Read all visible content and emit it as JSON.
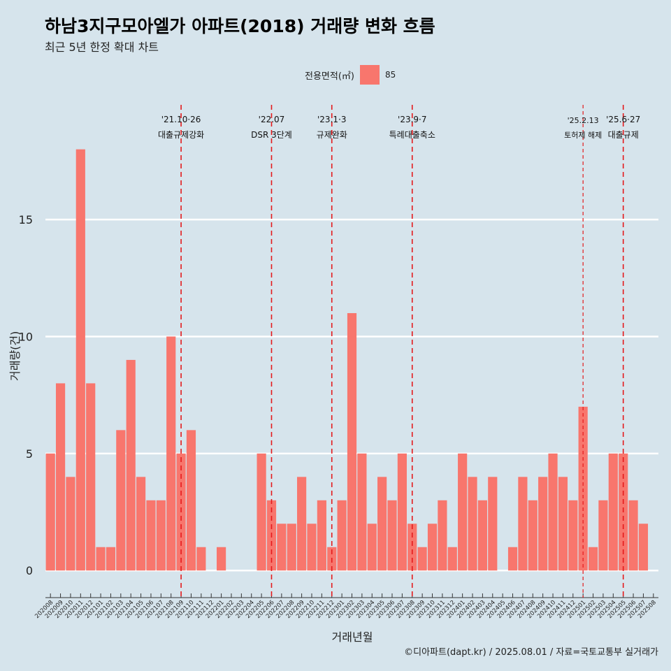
{
  "title": "하남3지구모아엘가 아파트(2018) 거래량 변화 흐름",
  "subtitle": "최근 5년 한정 확대 차트",
  "legend": {
    "title": "전용면적(㎡)",
    "value": "85",
    "color": "#f8766d"
  },
  "caption": "©디아파트(dapt.kr) / 2025.08.01 / 자료=국토교통부 실거래가",
  "chart_data": {
    "type": "bar",
    "xlabel": "거래년월",
    "ylabel": "거래량(건)",
    "ylim": [
      -0.8,
      20.2
    ],
    "yticks": [
      0,
      5,
      10,
      15
    ],
    "bar_color": "#f8766d",
    "grid": "horizontal",
    "legend_position": "top",
    "categories": [
      "202008",
      "202009",
      "202010",
      "202011",
      "202012",
      "202101",
      "202102",
      "202103",
      "202104",
      "202105",
      "202106",
      "202107",
      "202108",
      "202109",
      "202110",
      "202111",
      "202112",
      "202201",
      "202202",
      "202203",
      "202204",
      "202205",
      "202206",
      "202207",
      "202208",
      "202209",
      "202210",
      "202211",
      "202212",
      "202301",
      "202302",
      "202303",
      "202304",
      "202305",
      "202306",
      "202307",
      "202308",
      "202309",
      "202310",
      "202311",
      "202312",
      "202401",
      "202402",
      "202403",
      "202404",
      "202405",
      "202406",
      "202407",
      "202408",
      "202409",
      "202410",
      "202411",
      "202412",
      "202501",
      "202502",
      "202503",
      "202504",
      "202505",
      "202506",
      "202507",
      "202508"
    ],
    "series": [
      {
        "name": "85",
        "values": [
          5,
          8,
          4,
          18,
          8,
          1,
          1,
          6,
          9,
          4,
          3,
          3,
          10,
          5,
          6,
          1,
          0,
          1,
          0,
          0,
          0,
          5,
          3,
          2,
          2,
          4,
          2,
          3,
          1,
          3,
          11,
          5,
          2,
          4,
          3,
          5,
          2,
          1,
          2,
          3,
          1,
          5,
          4,
          3,
          4,
          0,
          1,
          4,
          3,
          4,
          5,
          4,
          3,
          7,
          1,
          3,
          5,
          5,
          3,
          2,
          0
        ]
      }
    ],
    "events": [
      {
        "date": "'21.10·26",
        "label": "대출규제강화",
        "position": 13.5,
        "small": false
      },
      {
        "date": "'22.07",
        "label": "DSR 3단계",
        "position": 22.5,
        "small": false
      },
      {
        "date": "'23.1·3",
        "label": "규제완화",
        "position": 28.5,
        "small": false
      },
      {
        "date": "'23.9·7",
        "label": "특례대출축소",
        "position": 36.5,
        "small": false
      },
      {
        "date": "'25.2.13",
        "label": "토허제 해제",
        "position": 53.5,
        "small": true
      },
      {
        "date": "'25.6·27",
        "label": "대출규제",
        "position": 57.5,
        "small": false
      }
    ]
  }
}
